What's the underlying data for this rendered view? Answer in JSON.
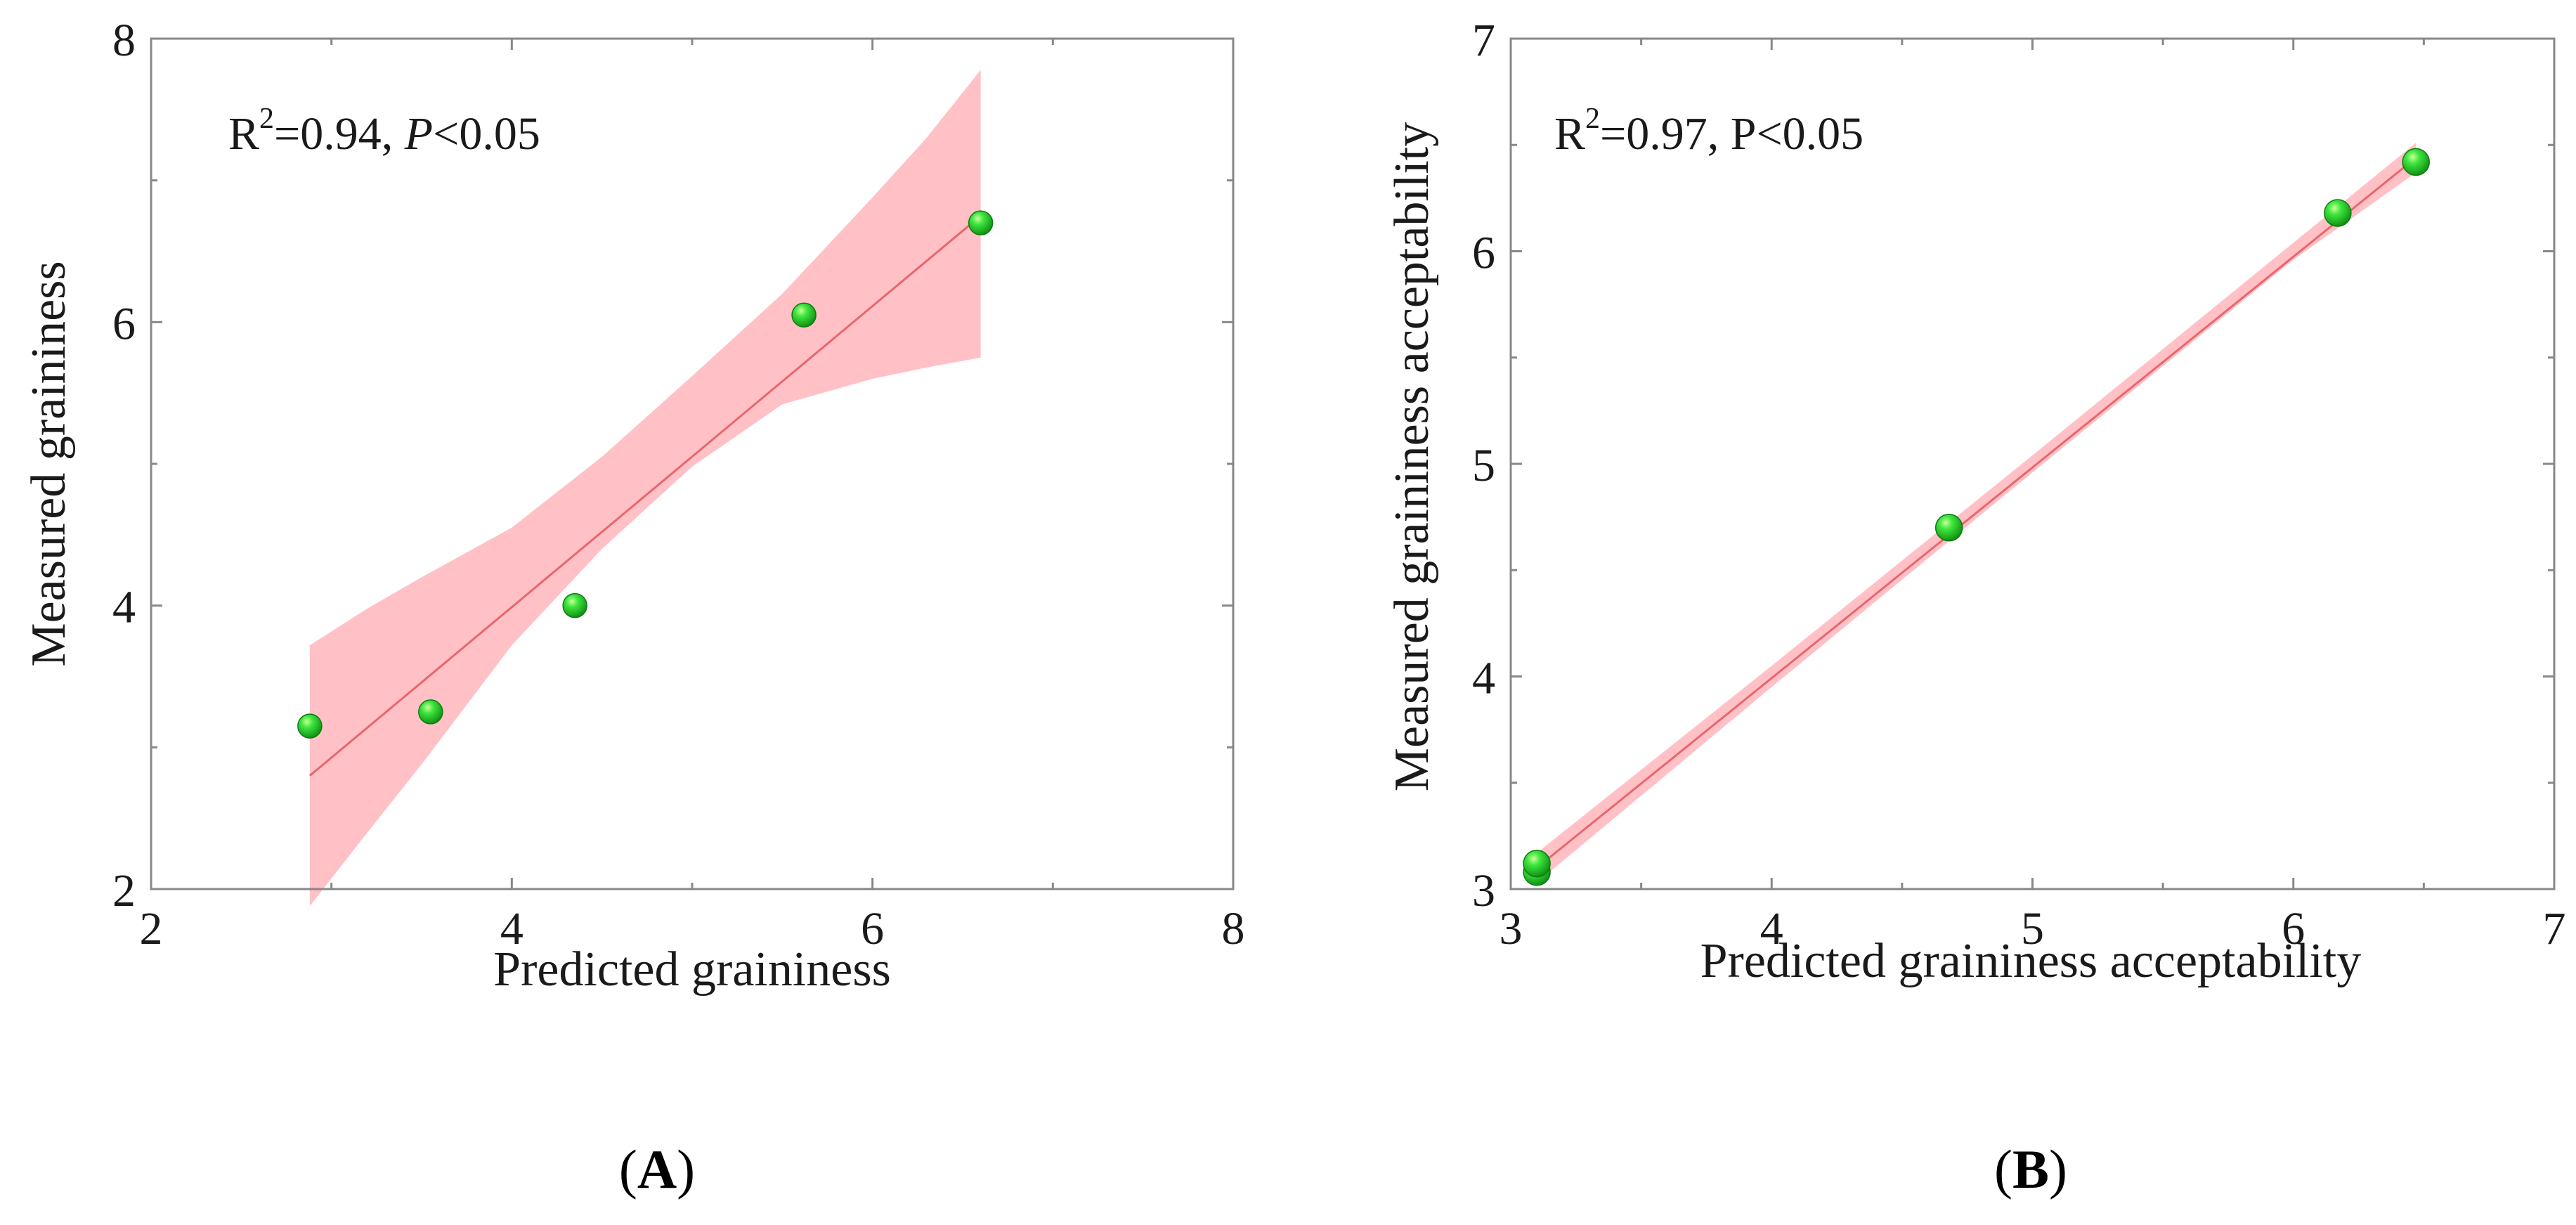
{
  "chart_data": [
    {
      "type": "scatter",
      "panel_label_open": "(",
      "panel_label": "A",
      "panel_label_close": ")",
      "xlabel": "Predicted graininess",
      "ylabel": "Measured graininess",
      "xlim": [
        2,
        8
      ],
      "ylim": [
        2,
        8
      ],
      "xticks": [
        2,
        4,
        6,
        8
      ],
      "yticks": [
        2,
        4,
        6,
        8
      ],
      "grid": false,
      "annotation": {
        "r2_prefix": "R",
        "r2_sup": "2",
        "r2_value": "=0.94, ",
        "p_symbol": "P",
        "p_value": "<0.05"
      },
      "points": [
        {
          "x": 2.88,
          "y": 3.15
        },
        {
          "x": 3.55,
          "y": 3.25
        },
        {
          "x": 4.35,
          "y": 4.0
        },
        {
          "x": 5.62,
          "y": 6.05
        },
        {
          "x": 6.6,
          "y": 6.7
        }
      ],
      "fit_line": {
        "x": [
          2.88,
          6.6
        ],
        "y": [
          2.8,
          6.75
        ]
      },
      "confidence_band": {
        "x": [
          2.88,
          3.2,
          3.5,
          4.0,
          4.5,
          5.0,
          5.5,
          6.0,
          6.3,
          6.6
        ],
        "upper": [
          3.72,
          3.98,
          4.2,
          4.55,
          5.05,
          5.62,
          6.2,
          6.88,
          7.3,
          7.78
        ],
        "lower": [
          1.88,
          2.4,
          2.88,
          3.72,
          4.4,
          4.98,
          5.42,
          5.6,
          5.68,
          5.75
        ]
      },
      "colors": {
        "point": "#22cc22",
        "line": "#e8666e",
        "band": "#ffb6bc"
      }
    },
    {
      "type": "scatter",
      "panel_label_open": "(",
      "panel_label": "B",
      "panel_label_close": ")",
      "xlabel": "Predicted graininess acceptability",
      "ylabel": "Measured graininess acceptability",
      "xlim": [
        3,
        7
      ],
      "ylim": [
        3,
        7
      ],
      "xticks": [
        3,
        4,
        5,
        6,
        7
      ],
      "yticks": [
        3,
        4,
        5,
        6,
        7
      ],
      "grid": false,
      "annotation": {
        "r2_prefix": "R",
        "r2_sup": "2",
        "r2_value": "=0.97, P<0.05",
        "p_symbol": "",
        "p_value": ""
      },
      "points": [
        {
          "x": 3.1,
          "y": 3.08
        },
        {
          "x": 3.1,
          "y": 3.12
        },
        {
          "x": 4.68,
          "y": 4.7
        },
        {
          "x": 6.17,
          "y": 6.18
        },
        {
          "x": 6.47,
          "y": 6.42
        }
      ],
      "fit_line": {
        "x": [
          3.1,
          6.47
        ],
        "y": [
          3.1,
          6.44
        ]
      },
      "confidence_band": {
        "x": [
          3.1,
          4.0,
          5.0,
          6.0,
          6.47
        ],
        "upper": [
          3.17,
          4.05,
          5.04,
          6.04,
          6.51
        ],
        "lower": [
          3.03,
          3.95,
          4.96,
          5.96,
          6.37
        ]
      },
      "colors": {
        "point": "#22cc22",
        "line": "#e8666e",
        "band": "#ffb6bc"
      }
    }
  ]
}
